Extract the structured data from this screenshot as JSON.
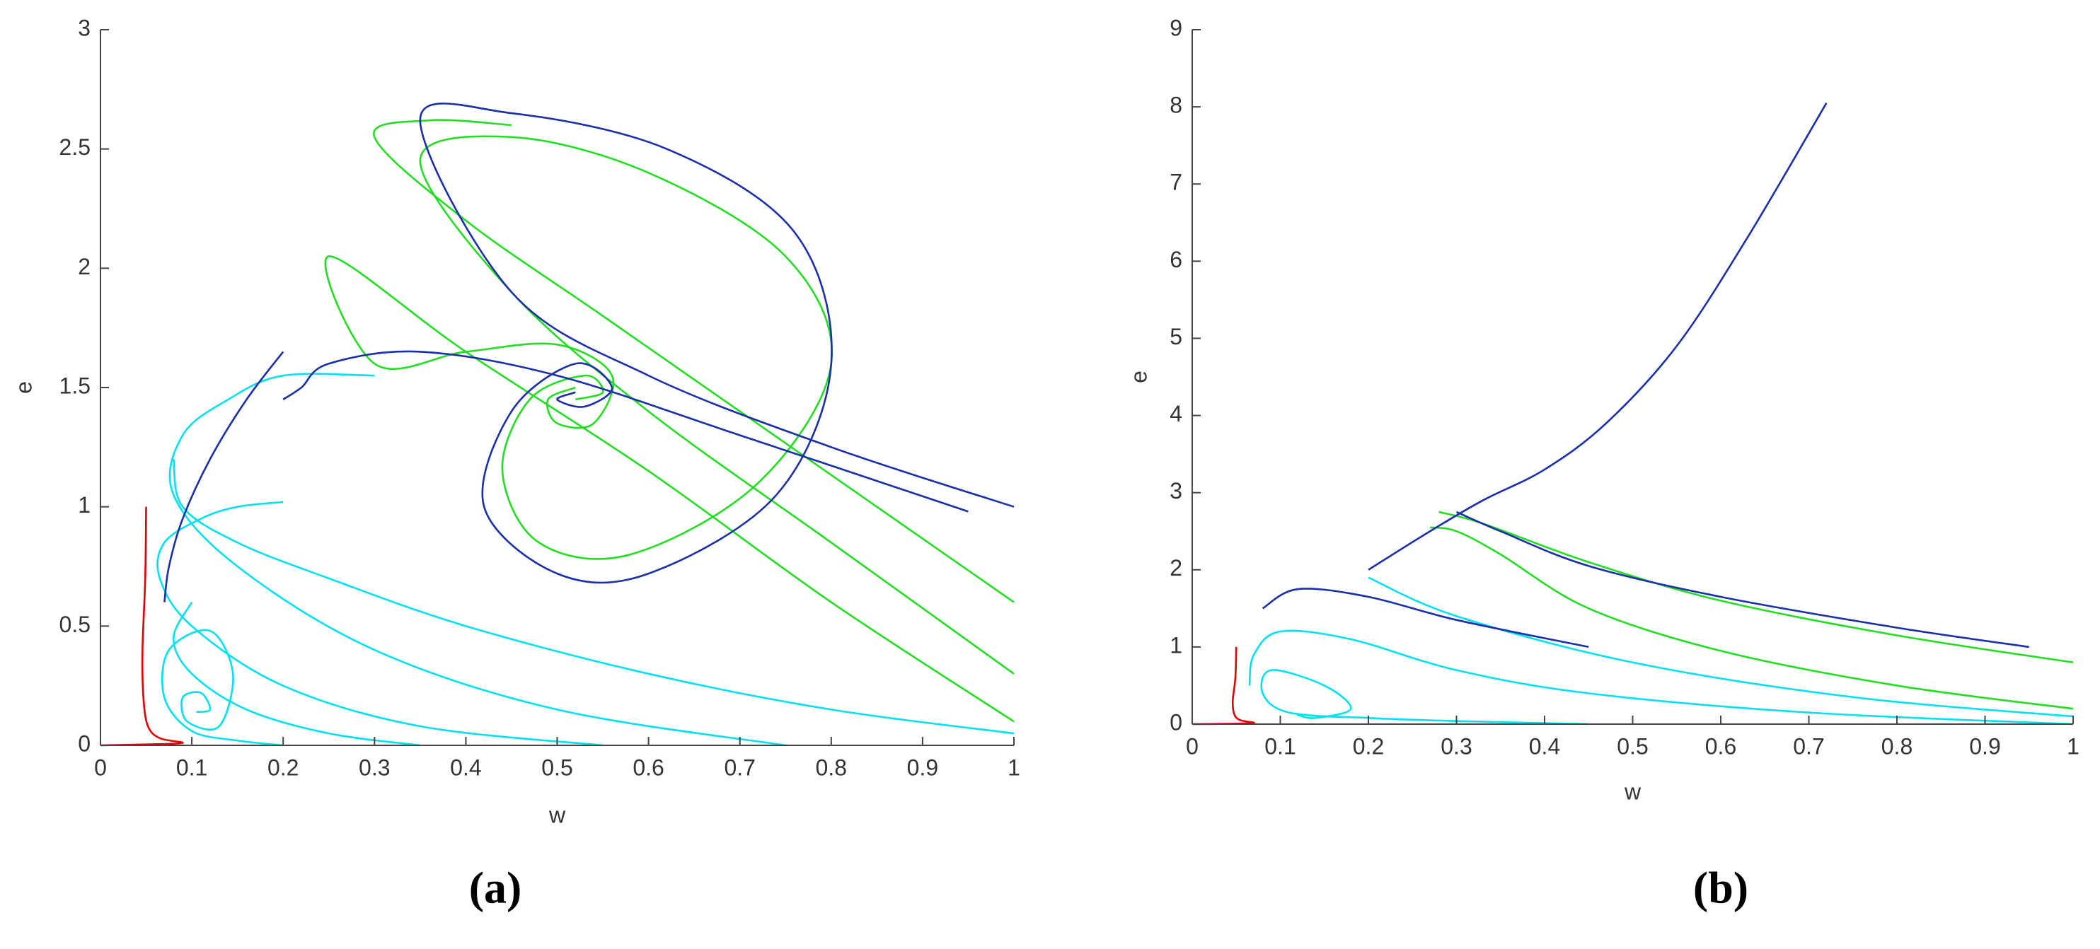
{
  "chart_data": [
    {
      "type": "line",
      "caption": "(a)",
      "x_label": "w",
      "y_label": "e",
      "xlim": [
        0,
        1
      ],
      "xticks": [
        0,
        0.1,
        0.2,
        0.3,
        0.4,
        0.5,
        0.6,
        0.7,
        0.8,
        0.9,
        1
      ],
      "ylim": [
        0,
        3
      ],
      "yticks": [
        0,
        0.5,
        1,
        1.5,
        2,
        2.5,
        3
      ],
      "series": [
        {
          "color": "#00e0ee",
          "x": [
            0.55,
            0.35,
            0.2,
            0.1,
            0.065,
            0.07,
            0.11,
            0.15,
            0.2
          ],
          "values": [
            0,
            0.08,
            0.25,
            0.5,
            0.7,
            0.85,
            0.95,
            1.0,
            1.02
          ]
        },
        {
          "color": "#00e0ee",
          "x": [
            0.75,
            0.5,
            0.3,
            0.15,
            0.08,
            0.09,
            0.14,
            0.2,
            0.3
          ],
          "values": [
            0,
            0.15,
            0.4,
            0.75,
            1.05,
            1.3,
            1.45,
            1.55,
            1.55
          ]
        },
        {
          "color": "#00e0ee",
          "x": [
            0.35,
            0.25,
            0.16,
            0.1,
            0.08,
            0.1
          ],
          "values": [
            0,
            0.05,
            0.15,
            0.3,
            0.45,
            0.6
          ]
        },
        {
          "color": "#00e0ee",
          "x": [
            0.2,
            0.15,
            0.1,
            0.07,
            0.075,
            0.12,
            0.145,
            0.13,
            0.095,
            0.09,
            0.11,
            0.12,
            0.105
          ],
          "values": [
            0,
            0.02,
            0.06,
            0.2,
            0.4,
            0.48,
            0.3,
            0.08,
            0.1,
            0.2,
            0.22,
            0.15,
            0.14
          ]
        },
        {
          "color": "#00e0ee",
          "x": [
            1,
            0.8,
            0.6,
            0.4,
            0.25,
            0.15,
            0.09,
            0.08
          ],
          "values": [
            0.05,
            0.15,
            0.3,
            0.5,
            0.7,
            0.85,
            1.0,
            1.2
          ]
        },
        {
          "color": "#22dd22",
          "x": [
            1,
            0.8,
            0.6,
            0.45,
            0.35,
            0.45,
            0.6,
            0.75,
            0.8,
            0.72,
            0.58,
            0.48,
            0.44,
            0.47,
            0.53,
            0.55,
            0.52
          ],
          "values": [
            0.3,
            0.85,
            1.4,
            1.9,
            2.45,
            2.55,
            2.4,
            2.05,
            1.6,
            1.1,
            0.8,
            0.85,
            1.15,
            1.45,
            1.55,
            1.48,
            1.45
          ]
        },
        {
          "color": "#22dd22",
          "x": [
            1,
            0.8,
            0.6,
            0.4,
            0.25,
            0.3,
            0.4,
            0.5,
            0.56,
            0.54,
            0.5,
            0.49,
            0.52
          ],
          "values": [
            0.1,
            0.6,
            1.15,
            1.65,
            2.05,
            1.6,
            1.65,
            1.68,
            1.55,
            1.35,
            1.35,
            1.45,
            1.5
          ]
        },
        {
          "color": "#22dd22",
          "x": [
            1,
            0.85,
            0.7,
            0.55,
            0.4,
            0.3,
            0.36,
            0.45
          ],
          "values": [
            0.6,
            1.0,
            1.4,
            1.8,
            2.2,
            2.55,
            2.62,
            2.6
          ]
        },
        {
          "color": "#1a2fa8",
          "x": [
            1,
            0.8,
            0.6,
            0.45,
            0.35,
            0.45,
            0.62,
            0.76,
            0.8,
            0.74,
            0.6,
            0.5,
            0.42,
            0.45,
            0.52,
            0.56,
            0.53,
            0.5,
            0.52
          ],
          "values": [
            1,
            1.25,
            1.55,
            1.9,
            2.62,
            2.65,
            2.5,
            2.15,
            1.6,
            1.05,
            0.72,
            0.72,
            1.0,
            1.4,
            1.6,
            1.5,
            1.42,
            1.45,
            1.48
          ]
        },
        {
          "color": "#1a2fa8",
          "x": [
            0.2,
            0.16,
            0.12,
            0.09,
            0.075,
            0.07
          ],
          "values": [
            1.65,
            1.45,
            1.2,
            0.95,
            0.75,
            0.6
          ]
        },
        {
          "color": "#1a2fa8",
          "x": [
            0.95,
            0.7,
            0.5,
            0.35,
            0.25,
            0.22,
            0.2
          ],
          "values": [
            0.98,
            1.3,
            1.55,
            1.65,
            1.6,
            1.5,
            1.45
          ]
        },
        {
          "color": "#e00000",
          "x": [
            0.05,
            0.049,
            0.046,
            0.047,
            0.052,
            0.065,
            0.09,
            0.05,
            0
          ],
          "values": [
            1,
            0.7,
            0.4,
            0.2,
            0.08,
            0.03,
            0.01,
            0.004,
            0
          ]
        }
      ]
    },
    {
      "type": "line",
      "caption": "(b)",
      "x_label": "w",
      "y_label": "e",
      "xlim": [
        0,
        1
      ],
      "xticks": [
        0,
        0.1,
        0.2,
        0.3,
        0.4,
        0.5,
        0.6,
        0.7,
        0.8,
        0.9,
        1
      ],
      "ylim": [
        0,
        9
      ],
      "yticks": [
        0,
        1,
        2,
        3,
        4,
        5,
        6,
        7,
        8,
        9
      ],
      "series": [
        {
          "color": "#00e0ee",
          "x": [
            0.45,
            0.3,
            0.2,
            0.11,
            0.08,
            0.09,
            0.15,
            0.18,
            0.14,
            0.12,
            0.13
          ],
          "values": [
            0,
            0.04,
            0.08,
            0.15,
            0.4,
            0.7,
            0.5,
            0.2,
            0.08,
            0.12,
            0.12
          ]
        },
        {
          "color": "#00e0ee",
          "x": [
            1,
            0.7,
            0.45,
            0.3,
            0.18,
            0.1,
            0.07,
            0.065
          ],
          "values": [
            0,
            0.15,
            0.4,
            0.7,
            1.1,
            1.2,
            0.9,
            0.5
          ]
        },
        {
          "color": "#00e0ee",
          "x": [
            1,
            0.75,
            0.5,
            0.3,
            0.2
          ],
          "values": [
            0.1,
            0.35,
            0.8,
            1.4,
            1.9
          ]
        },
        {
          "color": "#22dd22",
          "x": [
            1,
            0.8,
            0.6,
            0.45,
            0.35,
            0.3,
            0.27
          ],
          "values": [
            0.2,
            0.5,
            0.95,
            1.5,
            2.2,
            2.5,
            2.55
          ]
        },
        {
          "color": "#22dd22",
          "x": [
            1,
            0.8,
            0.6,
            0.45,
            0.33,
            0.28
          ],
          "values": [
            0.8,
            1.15,
            1.6,
            2.1,
            2.6,
            2.75
          ]
        },
        {
          "color": "#1a2fa8",
          "x": [
            0.2,
            0.27,
            0.33,
            0.4,
            0.47,
            0.55,
            0.63,
            0.72
          ],
          "values": [
            2.0,
            2.5,
            2.9,
            3.3,
            3.9,
            4.9,
            6.3,
            8.05
          ]
        },
        {
          "color": "#1a2fa8",
          "x": [
            0.95,
            0.8,
            0.6,
            0.45,
            0.35,
            0.3
          ],
          "values": [
            1.0,
            1.25,
            1.65,
            2.05,
            2.5,
            2.75
          ]
        },
        {
          "color": "#1a2fa8",
          "x": [
            0.45,
            0.3,
            0.2,
            0.12,
            0.08
          ],
          "values": [
            1.0,
            1.35,
            1.65,
            1.75,
            1.5
          ]
        },
        {
          "color": "#e00000",
          "x": [
            0.05,
            0.049,
            0.046,
            0.048,
            0.055,
            0.07,
            0.04,
            0
          ],
          "values": [
            1,
            0.6,
            0.3,
            0.12,
            0.05,
            0.015,
            0.004,
            0
          ]
        }
      ]
    }
  ]
}
